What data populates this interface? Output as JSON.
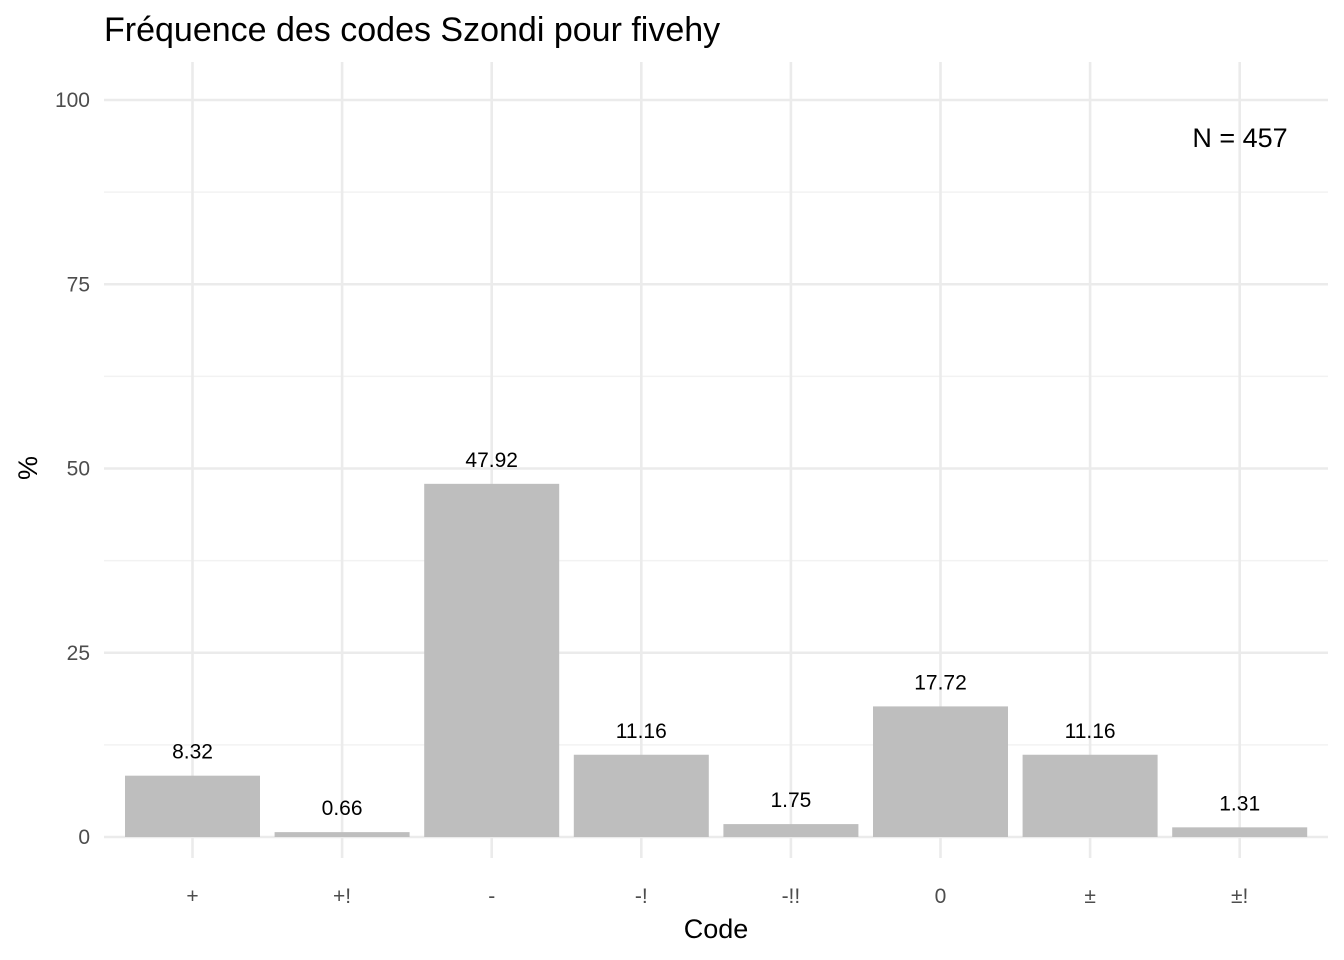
{
  "chart_data": {
    "type": "bar",
    "title": "Fréquence des codes Szondi pour fivehy",
    "xlabel": "Code",
    "ylabel": "%",
    "categories": [
      "+",
      "+!",
      "-",
      "-!",
      "-!!",
      "0",
      "±",
      "±!"
    ],
    "values": [
      8.32,
      0.66,
      47.92,
      11.16,
      1.75,
      17.72,
      11.16,
      1.31
    ],
    "value_labels": [
      "8.32",
      "0.66",
      "47.92",
      "11.16",
      "1.75",
      "17.72",
      "11.16",
      "1.31"
    ],
    "ylim": [
      0,
      100
    ],
    "yticks": [
      0,
      25,
      50,
      75,
      100
    ],
    "grid": true,
    "legend": "none",
    "annotation": "N = 457",
    "colors": {
      "bar": "#bebebe",
      "grid_major": "#ebebeb",
      "grid_minor": "#f2f2f2",
      "tick_text": "#4d4d4d",
      "text": "#000000"
    }
  }
}
